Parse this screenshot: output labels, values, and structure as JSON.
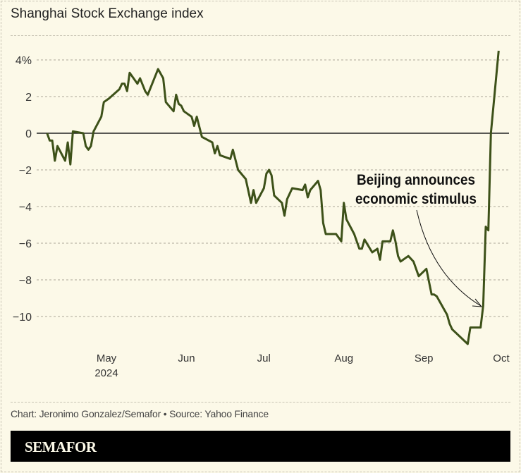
{
  "chart_data": {
    "type": "line",
    "title": "Shanghai Stock Exchange index",
    "xlabel": "",
    "ylabel": "",
    "ylim": [
      -11.8,
      4.6
    ],
    "yticks": [
      4,
      2,
      0,
      -2,
      -4,
      -6,
      -8,
      -10
    ],
    "ytick_labels": [
      "4%",
      "2",
      "0",
      "−2",
      "−4",
      "−6",
      "−8",
      "−10"
    ],
    "xticks": [
      {
        "date": "2024-05-01",
        "label": "May",
        "sublabel": "2024"
      },
      {
        "date": "2024-06-01",
        "label": "Jun"
      },
      {
        "date": "2024-07-01",
        "label": "Jul"
      },
      {
        "date": "2024-08-01",
        "label": "Aug"
      },
      {
        "date": "2024-09-01",
        "label": "Sep"
      },
      {
        "date": "2024-10-01",
        "label": "Oct"
      }
    ],
    "grid": true,
    "line_color": "#3d5119",
    "annotation": {
      "lines": [
        "Beijing announces",
        "economic stimulus"
      ],
      "points_to": "2024-09-24"
    },
    "series": [
      {
        "x": [
          "2024-04-08",
          "2024-04-09",
          "2024-04-10",
          "2024-04-11",
          "2024-04-12",
          "2024-04-15",
          "2024-04-16",
          "2024-04-17",
          "2024-04-18",
          "2024-04-22",
          "2024-04-23",
          "2024-04-24",
          "2024-04-25",
          "2024-04-26",
          "2024-04-29",
          "2024-04-30",
          "2024-05-02",
          "2024-05-06",
          "2024-05-07",
          "2024-05-08",
          "2024-05-09",
          "2024-05-10",
          "2024-05-13",
          "2024-05-14",
          "2024-05-16",
          "2024-05-17",
          "2024-05-21",
          "2024-05-23",
          "2024-05-24",
          "2024-05-27",
          "2024-05-28",
          "2024-05-29",
          "2024-05-30",
          "2024-05-31",
          "2024-06-03",
          "2024-06-04",
          "2024-06-05",
          "2024-06-07",
          "2024-06-11",
          "2024-06-12",
          "2024-06-13",
          "2024-06-14",
          "2024-06-18",
          "2024-06-19",
          "2024-06-21",
          "2024-06-24",
          "2024-06-26",
          "2024-06-27",
          "2024-06-28",
          "2024-07-01",
          "2024-07-02",
          "2024-07-03",
          "2024-07-04",
          "2024-07-05",
          "2024-07-08",
          "2024-07-09",
          "2024-07-10",
          "2024-07-12",
          "2024-07-16",
          "2024-07-17",
          "2024-07-18",
          "2024-07-19",
          "2024-07-22",
          "2024-07-23",
          "2024-07-24",
          "2024-07-25",
          "2024-07-29",
          "2024-07-31",
          "2024-08-01",
          "2024-08-02",
          "2024-08-05",
          "2024-08-07",
          "2024-08-08",
          "2024-08-09",
          "2024-08-12",
          "2024-08-14",
          "2024-08-15",
          "2024-08-16",
          "2024-08-19",
          "2024-08-20",
          "2024-08-21",
          "2024-08-22",
          "2024-08-23",
          "2024-08-26",
          "2024-08-28",
          "2024-08-30",
          "2024-09-02",
          "2024-09-04",
          "2024-09-05",
          "2024-09-06",
          "2024-09-10",
          "2024-09-11",
          "2024-09-12",
          "2024-09-18",
          "2024-09-19",
          "2024-09-23",
          "2024-09-24",
          "2024-09-25",
          "2024-09-26",
          "2024-09-27",
          "2024-09-30"
        ],
        "values": [
          0,
          -0.4,
          -0.4,
          -1.5,
          -0.7,
          -1.5,
          -0.5,
          -1.7,
          0.1,
          0.0,
          -0.7,
          -0.9,
          -0.7,
          0.1,
          0.9,
          1.7,
          1.9,
          2.4,
          2.7,
          2.7,
          2.3,
          3.3,
          2.7,
          3.0,
          2.3,
          2.1,
          3.5,
          3.0,
          1.7,
          1.2,
          2.1,
          1.6,
          1.5,
          1.2,
          0.9,
          0.4,
          0.9,
          -0.2,
          -0.5,
          -1.1,
          -0.7,
          -1.2,
          -1.4,
          -0.9,
          -2.0,
          -2.5,
          -3.8,
          -3.1,
          -3.8,
          -3.0,
          -2.2,
          -2.0,
          -2.3,
          -3.4,
          -3.8,
          -4.5,
          -3.6,
          -3.0,
          -3.1,
          -2.8,
          -3.5,
          -3.1,
          -2.6,
          -3.1,
          -4.9,
          -5.5,
          -5.5,
          -5.9,
          -3.8,
          -4.7,
          -5.5,
          -6.3,
          -6.3,
          -5.8,
          -6.5,
          -6.3,
          -6.9,
          -5.9,
          -5.9,
          -5.3,
          -5.9,
          -6.7,
          -7.0,
          -6.7,
          -7.0,
          -7.8,
          -7.4,
          -8.8,
          -8.8,
          -8.9,
          -9.9,
          -10.4,
          -10.7,
          -11.5,
          -10.6,
          -10.6,
          -9.4,
          -5.1,
          -5.3,
          0.0,
          4.5
        ]
      }
    ]
  },
  "footer": {
    "source": "Chart: Jeronimo Gonzalez/Semafor • Source: Yahoo Finance",
    "brand": "SEMAFOR"
  }
}
